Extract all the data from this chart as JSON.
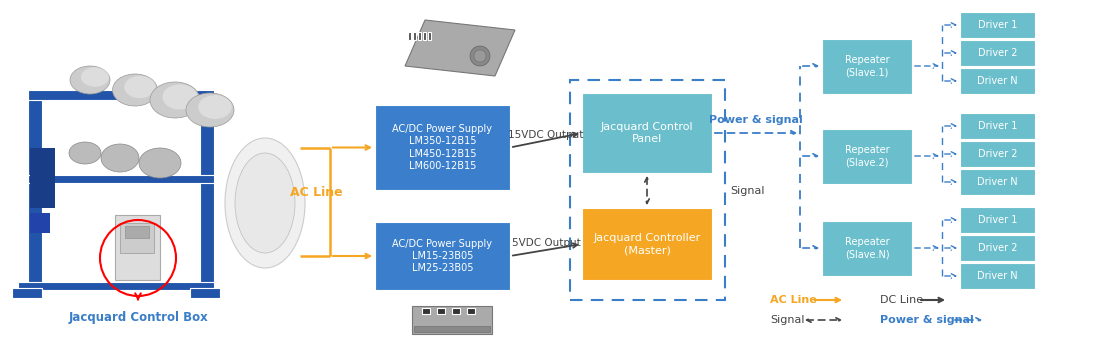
{
  "bg_color": "#ffffff",
  "orange": "#F5A623",
  "blue_box": "#3B7FCC",
  "light_blue_box": "#6BBFCC",
  "orange_box": "#F5A623",
  "dark_gray": "#444444",
  "arrow_blue": "#3A7EC8",
  "box1_label": "AC/DC Power Supply\nLM350-12B15\nLM450-12B15\nLM600-12B15",
  "box2_label": "AC/DC Power Supply\nLM15-23B05\nLM25-23B05",
  "control_panel_label": "Jacquard Control\nPanel",
  "controller_label": "Jacquard Controller\n(Master)",
  "repeater1_label": "Repeater\n(Slave.1)",
  "repeater2_label": "Repeater\n(Slave.2)",
  "repeater3_label": "Repeater\n(Slave.N)",
  "ac_line_label": "AC Line",
  "output15_label": "15VDC Output",
  "output5_label": "5VDC Output",
  "signal_label": "Signal",
  "power_signal_label": "Power & signal",
  "jacquard_box_label": "Jacquard Control Box",
  "legend_ac": "AC Line",
  "legend_dc": "DC Line",
  "legend_signal": "Signal",
  "legend_ps": "Power & signal",
  "driver_labels": [
    "Driver 1",
    "Driver 2",
    "Driver N"
  ]
}
